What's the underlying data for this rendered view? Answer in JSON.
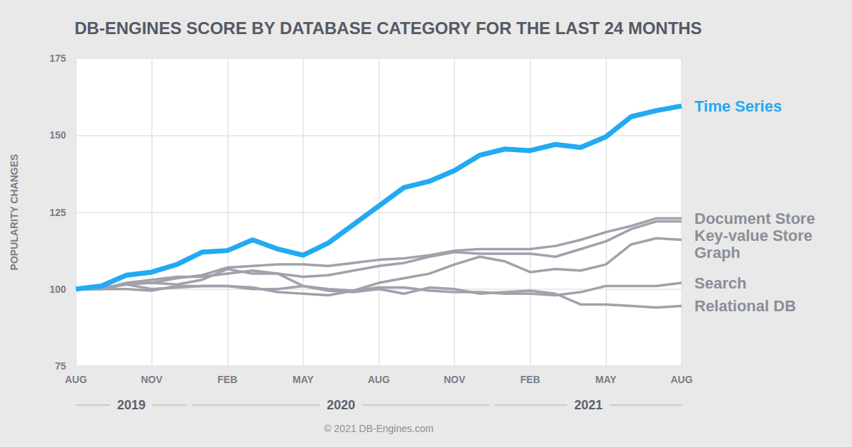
{
  "chart_data": {
    "type": "line",
    "title": "DB-ENGINES SCORE BY DATABASE CATEGORY FOR THE LAST 24 MONTHS",
    "y_label": "POPULARITY CHANGES",
    "source": "© 2021 DB-Engines.com",
    "categories": [
      "AUG",
      null,
      null,
      "NOV",
      null,
      null,
      "FEB",
      null,
      null,
      "MAY",
      null,
      null,
      "AUG",
      null,
      null,
      "NOV",
      null,
      null,
      "FEB",
      null,
      null,
      "MAY",
      null,
      null,
      "AUG"
    ],
    "x_groups": [
      {
        "label": "2019",
        "span": 5
      },
      {
        "label": "2020",
        "span": 12
      },
      {
        "label": "2021",
        "span": 8
      }
    ],
    "series": [
      {
        "name": "Time Series",
        "color": "#22aaf2",
        "values": [
          100,
          101,
          104.5,
          105.5,
          108,
          112,
          112.5,
          116,
          113,
          111,
          115,
          121,
          127,
          133,
          135,
          138.5,
          143.5,
          145.5,
          145,
          147,
          146,
          149.5,
          156,
          158,
          159.5
        ]
      },
      {
        "name": "Document Store",
        "color": "#a0a2ab",
        "values": [
          100,
          100.5,
          101.5,
          102,
          103.5,
          104.5,
          107,
          107.5,
          108,
          108,
          107.5,
          108.5,
          109.5,
          110,
          111,
          112.5,
          113,
          113,
          113,
          114,
          116,
          118.5,
          120.5,
          123,
          123
        ]
      },
      {
        "name": "Key-value Store",
        "color": "#a0a2ab",
        "values": [
          100,
          100,
          102,
          103,
          104,
          104,
          105,
          106,
          105,
          104,
          104.5,
          106,
          107.5,
          108.5,
          110.5,
          112,
          111.5,
          111.5,
          111.5,
          110.5,
          113,
          115.5,
          119.5,
          122,
          122
        ]
      },
      {
        "name": "Graph",
        "color": "#a0a2ab",
        "values": [
          100,
          100,
          102,
          102,
          101.5,
          103,
          106.5,
          105,
          105,
          101,
          100,
          99.5,
          102,
          103.5,
          105,
          108,
          110.5,
          109,
          105.5,
          106.5,
          106,
          108,
          114.5,
          116.5,
          116
        ]
      },
      {
        "name": "Search",
        "color": "#a0a2ab",
        "values": [
          100,
          100,
          100,
          99.5,
          101,
          101,
          101,
          100.5,
          99,
          98.5,
          98,
          99.5,
          100.5,
          100.5,
          99.5,
          99,
          99,
          98.5,
          98.5,
          98,
          99,
          101,
          101,
          101,
          102
        ]
      },
      {
        "name": "Relational DB",
        "color": "#a0a2ab",
        "values": [
          100,
          100,
          101.5,
          100,
          100.5,
          101,
          101,
          100,
          100,
          101,
          99.5,
          99,
          100,
          98.5,
          100.5,
          100,
          98.5,
          99,
          99.5,
          98.5,
          95,
          95,
          94.5,
          94,
          94.5
        ]
      }
    ],
    "ylim": [
      75,
      175
    ],
    "yticks": [
      75,
      100,
      125,
      150,
      175
    ],
    "grid": true
  }
}
